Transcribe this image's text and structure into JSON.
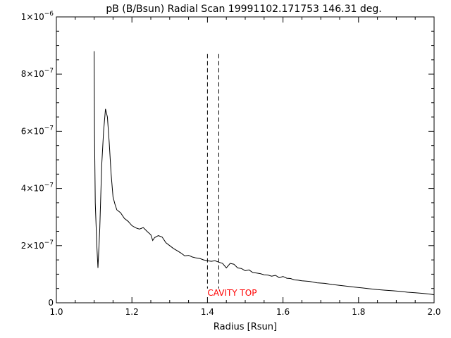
{
  "chart_data": {
    "type": "line",
    "title": "pB (B/Bsun) Radial Scan 19991102.171753 146.31 deg.",
    "xlabel": "Radius [Rsun]",
    "ylabel": "",
    "xlim": [
      1.0,
      2.0
    ],
    "ylim": [
      0,
      1e-06
    ],
    "grid": false,
    "x_ticks": [
      "1.0",
      "1.2",
      "1.4",
      "1.6",
      "1.8",
      "2.0"
    ],
    "x_tick_values": [
      1.0,
      1.2,
      1.4,
      1.6,
      1.8,
      2.0
    ],
    "y_ticks": [
      {
        "mant": "0",
        "exp": "",
        "value": 0
      },
      {
        "mant": "2×10",
        "exp": "−7",
        "value": 2e-07
      },
      {
        "mant": "4×10",
        "exp": "−7",
        "value": 4e-07
      },
      {
        "mant": "6×10",
        "exp": "−7",
        "value": 6e-07
      },
      {
        "mant": "8×10",
        "exp": "−7",
        "value": 8e-07
      },
      {
        "mant": "1×10",
        "exp": "−6",
        "value": 1e-06
      }
    ],
    "series": [
      {
        "color": "#000000",
        "points": [
          [
            1.1,
            8.8e-07
          ],
          [
            1.101,
            6e-07
          ],
          [
            1.103,
            3.5e-07
          ],
          [
            1.107,
            2e-07
          ],
          [
            1.11,
            1.22e-07
          ],
          [
            1.115,
            2.6e-07
          ],
          [
            1.12,
            4.8e-07
          ],
          [
            1.125,
            6e-07
          ],
          [
            1.13,
            6.78e-07
          ],
          [
            1.135,
            6.5e-07
          ],
          [
            1.14,
            5.6e-07
          ],
          [
            1.145,
            4.5e-07
          ],
          [
            1.15,
            3.7e-07
          ],
          [
            1.155,
            3.45e-07
          ],
          [
            1.16,
            3.25e-07
          ],
          [
            1.17,
            3.15e-07
          ],
          [
            1.18,
            2.95e-07
          ],
          [
            1.19,
            2.85e-07
          ],
          [
            1.2,
            2.7e-07
          ],
          [
            1.21,
            2.62e-07
          ],
          [
            1.22,
            2.58e-07
          ],
          [
            1.23,
            2.63e-07
          ],
          [
            1.24,
            2.5e-07
          ],
          [
            1.25,
            2.38e-07
          ],
          [
            1.255,
            2.18e-07
          ],
          [
            1.26,
            2.28e-07
          ],
          [
            1.27,
            2.35e-07
          ],
          [
            1.28,
            2.3e-07
          ],
          [
            1.29,
            2.1e-07
          ],
          [
            1.3,
            2e-07
          ],
          [
            1.31,
            1.9e-07
          ],
          [
            1.32,
            1.82e-07
          ],
          [
            1.33,
            1.74e-07
          ],
          [
            1.34,
            1.64e-07
          ],
          [
            1.35,
            1.66e-07
          ],
          [
            1.36,
            1.6e-07
          ],
          [
            1.37,
            1.57e-07
          ],
          [
            1.38,
            1.55e-07
          ],
          [
            1.39,
            1.5e-07
          ],
          [
            1.4,
            1.47e-07
          ],
          [
            1.41,
            1.45e-07
          ],
          [
            1.42,
            1.47e-07
          ],
          [
            1.43,
            1.42e-07
          ],
          [
            1.44,
            1.38e-07
          ],
          [
            1.45,
            1.22e-07
          ],
          [
            1.46,
            1.38e-07
          ],
          [
            1.47,
            1.35e-07
          ],
          [
            1.48,
            1.22e-07
          ],
          [
            1.49,
            1.2e-07
          ],
          [
            1.5,
            1.12e-07
          ],
          [
            1.51,
            1.15e-07
          ],
          [
            1.52,
            1.06e-07
          ],
          [
            1.53,
            1.04e-07
          ],
          [
            1.54,
            1.02e-07
          ],
          [
            1.55,
            9.8e-08
          ],
          [
            1.56,
            9.7e-08
          ],
          [
            1.57,
            9.3e-08
          ],
          [
            1.58,
            9.6e-08
          ],
          [
            1.59,
            8.8e-08
          ],
          [
            1.6,
            9.2e-08
          ],
          [
            1.61,
            8.6e-08
          ],
          [
            1.62,
            8.5e-08
          ],
          [
            1.63,
            8e-08
          ],
          [
            1.64,
            7.9e-08
          ],
          [
            1.65,
            7.7e-08
          ],
          [
            1.67,
            7.5e-08
          ],
          [
            1.69,
            7e-08
          ],
          [
            1.71,
            6.8e-08
          ],
          [
            1.73,
            6.4e-08
          ],
          [
            1.75,
            6.1e-08
          ],
          [
            1.77,
            5.8e-08
          ],
          [
            1.79,
            5.5e-08
          ],
          [
            1.81,
            5.2e-08
          ],
          [
            1.83,
            4.9e-08
          ],
          [
            1.85,
            4.6e-08
          ],
          [
            1.87,
            4.4e-08
          ],
          [
            1.89,
            4.2e-08
          ],
          [
            1.91,
            4e-08
          ],
          [
            1.93,
            3.7e-08
          ],
          [
            1.95,
            3.5e-08
          ],
          [
            1.97,
            3.3e-08
          ],
          [
            1.99,
            3e-08
          ],
          [
            2.0,
            2.8e-08
          ]
        ]
      }
    ],
    "vlines": [
      {
        "x": 1.4,
        "y_top": 8.7e-07,
        "style": "dashed"
      },
      {
        "x": 1.43,
        "y_top": 8.7e-07,
        "style": "dashed"
      }
    ],
    "annotations": [
      {
        "text": "CAVITY TOP",
        "x": 1.4,
        "y": 3.5e-08,
        "color": "#ff0000"
      }
    ]
  }
}
